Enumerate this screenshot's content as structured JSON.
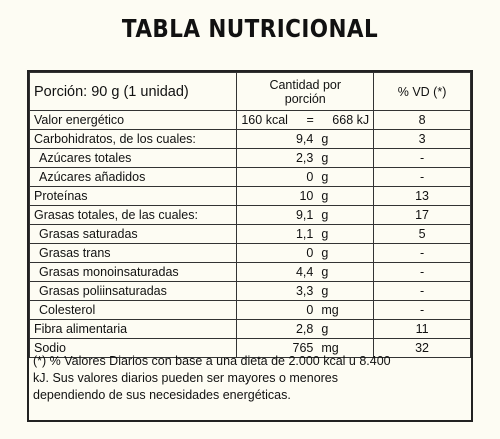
{
  "title": "TABLA NUTRICIONAL",
  "header": {
    "portion": "Porción:  90 g (1 unidad)",
    "amount_line1": "Cantidad por",
    "amount_line2": "porción",
    "vd": "% VD (*)"
  },
  "energy": {
    "label": "Valor energético",
    "kcal": "160 kcal",
    "eq": "=",
    "kj": "668 kJ",
    "vd": "8"
  },
  "rows": [
    {
      "label": "Carbohidratos, de los cuales:",
      "num": "9,4",
      "unit": "g",
      "vd": "3"
    },
    {
      "label": "Azúcares totales",
      "num": "2,3",
      "unit": "g",
      "vd": "-"
    },
    {
      "label": "Azúcares añadidos",
      "num": "0",
      "unit": "g",
      "vd": "-"
    },
    {
      "label": "Proteínas",
      "num": "10",
      "unit": "g",
      "vd": "13"
    },
    {
      "label": "Grasas totales, de las cuales:",
      "num": "9,1",
      "unit": "g",
      "vd": "17"
    },
    {
      "label": "Grasas saturadas",
      "num": "1,1",
      "unit": "g",
      "vd": "5"
    },
    {
      "label": "Grasas trans",
      "num": "0",
      "unit": "g",
      "vd": "-"
    },
    {
      "label": "Grasas monoinsaturadas",
      "num": "4,4",
      "unit": "g",
      "vd": "-"
    },
    {
      "label": "Grasas poliinsaturadas",
      "num": "3,3",
      "unit": "g",
      "vd": "-"
    },
    {
      "label": "Colesterol",
      "num": "0",
      "unit": "mg",
      "vd": "-"
    },
    {
      "label": "Fibra alimentaria",
      "num": "2,8",
      "unit": "g",
      "vd": "11"
    },
    {
      "label": "Sodio",
      "num": "765",
      "unit": "mg",
      "vd": "32"
    }
  ],
  "footnote": {
    "line1": "(*) % Valores Diarios con base a una dieta de 2.000 kcal u 8.400",
    "line2": "kJ. Sus valores diarios pueden ser mayores o menores",
    "line3": "dependiendo de sus necesidades energéticas."
  }
}
